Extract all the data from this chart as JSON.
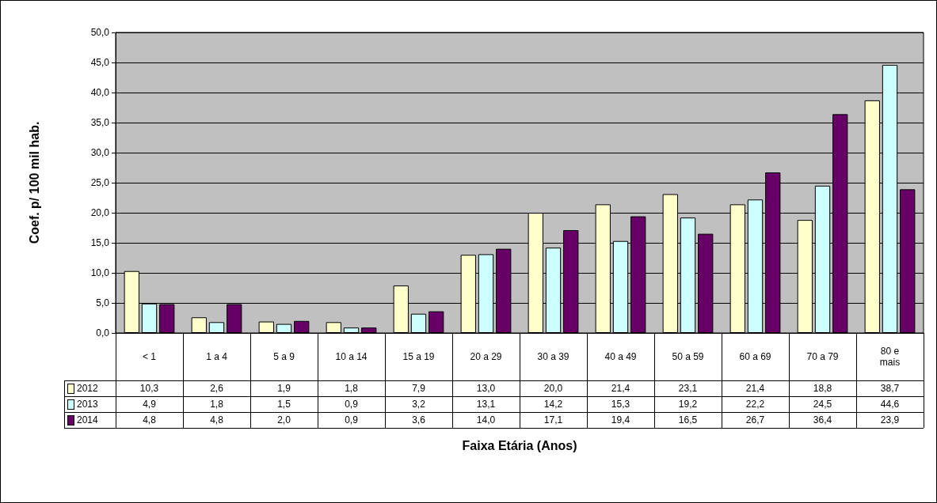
{
  "chart_data": {
    "type": "bar",
    "ylabel": "Coef. p/ 100 mil hab.",
    "annotations": [
      "Faixa Etária (Anos)"
    ],
    "legend": "bottom left",
    "categories": [
      "< 1",
      "1 a 4",
      "5 a 9",
      "10 a 14",
      "15 a 19",
      "20 a 29",
      "30 a 39",
      "40 a 49",
      "50 a 59",
      "60 a 69",
      "70 a 79",
      "80 e mais"
    ],
    "series": [
      {
        "name": "2012",
        "color": "#ffffcc",
        "values": [
          10.3,
          2.6,
          1.9,
          1.8,
          7.9,
          13.0,
          20.0,
          21.4,
          23.1,
          21.4,
          18.8,
          38.7
        ],
        "value_labels": [
          "10,3",
          "2,6",
          "1,9",
          "1,8",
          "7,9",
          "13,0",
          "20,0",
          "21,4",
          "23,1",
          "21,4",
          "18,8",
          "38,7"
        ]
      },
      {
        "name": "2013",
        "color": "#ccffff",
        "values": [
          4.9,
          1.8,
          1.5,
          0.9,
          3.2,
          13.1,
          14.2,
          15.3,
          19.2,
          22.2,
          24.5,
          44.6
        ],
        "value_labels": [
          "4,9",
          "1,8",
          "1,5",
          "0,9",
          "3,2",
          "13,1",
          "14,2",
          "15,3",
          "19,2",
          "22,2",
          "24,5",
          "44,6"
        ]
      },
      {
        "name": "2014",
        "color": "#660066",
        "values": [
          4.8,
          4.8,
          2.0,
          0.9,
          3.6,
          14.0,
          17.1,
          19.4,
          16.5,
          26.7,
          36.4,
          23.9
        ],
        "value_labels": [
          "4,8",
          "4,8",
          "2,0",
          "0,9",
          "3,6",
          "14,0",
          "17,1",
          "19,4",
          "16,5",
          "26,7",
          "36,4",
          "23,9"
        ]
      }
    ],
    "ylim": [
      0,
      50
    ],
    "yticks": [
      {
        "value": 0,
        "label": "0,0"
      },
      {
        "value": 5,
        "label": "5,0"
      },
      {
        "value": 10,
        "label": "10,0"
      },
      {
        "value": 15,
        "label": "15,0"
      },
      {
        "value": 20,
        "label": "20,0"
      },
      {
        "value": 25,
        "label": "25,0"
      },
      {
        "value": 30,
        "label": "30,0"
      },
      {
        "value": 35,
        "label": "35,0"
      },
      {
        "value": 40,
        "label": "40,0"
      },
      {
        "value": 45,
        "label": "45,0"
      },
      {
        "value": 50,
        "label": "50,0"
      }
    ],
    "grid": "y"
  }
}
